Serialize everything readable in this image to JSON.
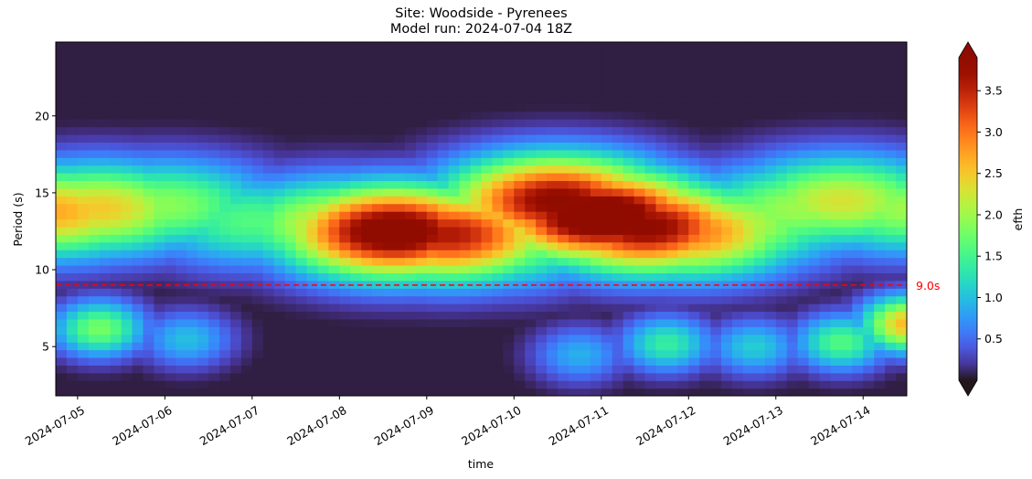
{
  "chart_data": {
    "type": "heatmap",
    "title": "Site: Woodside - Pyrenees",
    "subtitle": "Model run: 2024-07-04 18Z",
    "xlabel": "time",
    "ylabel": "Period (s)",
    "colorbar_label": "efth",
    "colormap": "turbo",
    "x_range": [
      "2024-07-04T18:00",
      "2024-07-14T12:00"
    ],
    "ylim": [
      1.8,
      24.8
    ],
    "clim": [
      0.0,
      3.9
    ],
    "x_ticks": [
      "2024-07-05",
      "2024-07-06",
      "2024-07-07",
      "2024-07-08",
      "2024-07-09",
      "2024-07-10",
      "2024-07-11",
      "2024-07-12",
      "2024-07-13",
      "2024-07-14"
    ],
    "y_ticks": [
      5,
      10,
      15,
      20
    ],
    "colorbar_ticks": [
      0.5,
      1.0,
      1.5,
      2.0,
      2.5,
      3.0,
      3.5
    ],
    "colorbar_extend": "both",
    "reference_line": {
      "y": 9.0,
      "label": "9.0s",
      "color": "#ff0000",
      "style": "dashed"
    },
    "features": [
      {
        "time": "2024-07-04T18:00",
        "period": 13.8,
        "value": 2.7
      },
      {
        "time": "2024-07-05T06:00",
        "period": 14.0,
        "value": 2.5
      },
      {
        "time": "2024-07-06T00:00",
        "period": 14.2,
        "value": 1.9
      },
      {
        "time": "2024-07-07T00:00",
        "period": 13.2,
        "value": 1.6
      },
      {
        "time": "2024-07-08T00:00",
        "period": 13.0,
        "value": 2.4
      },
      {
        "time": "2024-07-08T15:00",
        "period": 12.5,
        "value": 4.2
      },
      {
        "time": "2024-07-09T06:00",
        "period": 12.3,
        "value": 3.6
      },
      {
        "time": "2024-07-09T18:00",
        "period": 12.0,
        "value": 2.2
      },
      {
        "time": "2024-07-10T12:00",
        "period": 14.5,
        "value": 3.9
      },
      {
        "time": "2024-07-11T00:00",
        "period": 13.5,
        "value": 4.4
      },
      {
        "time": "2024-07-11T12:00",
        "period": 12.8,
        "value": 3.9
      },
      {
        "time": "2024-07-12T00:00",
        "period": 12.5,
        "value": 3.0
      },
      {
        "time": "2024-07-12T12:00",
        "period": 13.0,
        "value": 2.2
      },
      {
        "time": "2024-07-13T06:00",
        "period": 14.0,
        "value": 2.0
      },
      {
        "time": "2024-07-13T18:00",
        "period": 14.5,
        "value": 2.3
      },
      {
        "time": "2024-07-14T12:00",
        "period": 14.0,
        "value": 2.0
      },
      {
        "time": "2024-07-05T06:00",
        "period": 6.2,
        "value": 1.8
      },
      {
        "time": "2024-07-06T06:00",
        "period": 5.5,
        "value": 1.0
      },
      {
        "time": "2024-07-10T18:00",
        "period": 4.5,
        "value": 0.9
      },
      {
        "time": "2024-07-11T18:00",
        "period": 5.2,
        "value": 1.4
      },
      {
        "time": "2024-07-12T18:00",
        "period": 5.0,
        "value": 1.1
      },
      {
        "time": "2024-07-13T18:00",
        "period": 5.3,
        "value": 1.6
      },
      {
        "time": "2024-07-14T12:00",
        "period": 6.5,
        "value": 2.6
      }
    ]
  }
}
